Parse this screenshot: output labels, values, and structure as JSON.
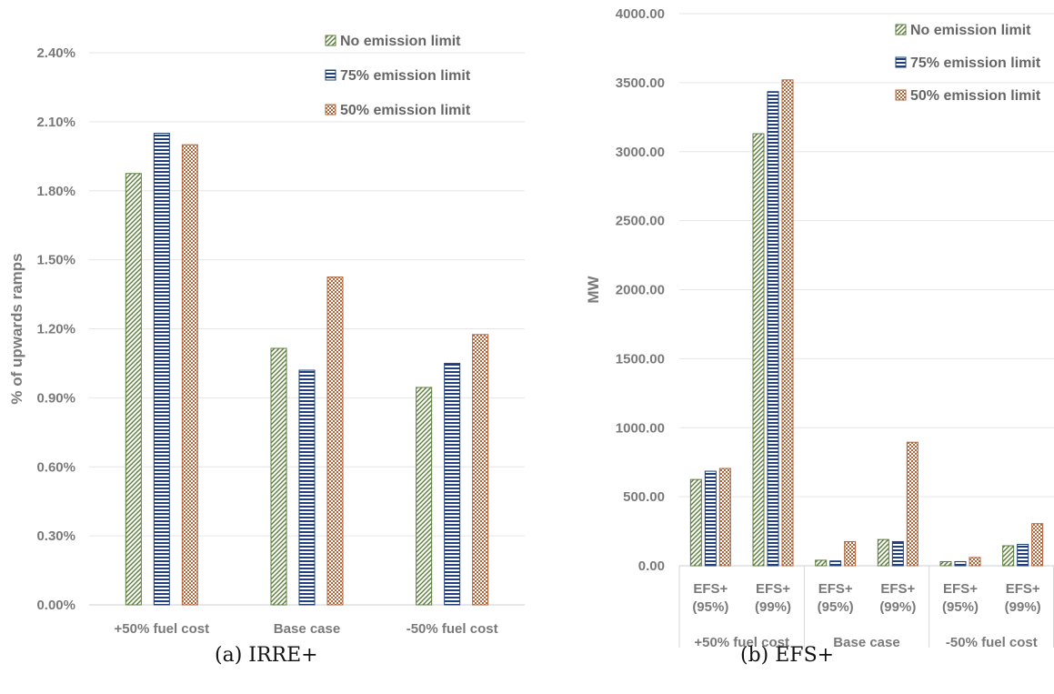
{
  "colors": {
    "no_limit": "#5a7d3a",
    "limit_75": "#203f7a",
    "limit_50": "#b0643a",
    "axis_text": "#7a7a7a",
    "grid": "#e6e6e6"
  },
  "captions": {
    "a": "(a) IRRE+",
    "b": "(b) EFS+"
  },
  "chart_data": [
    {
      "type": "bar",
      "ylabel": "% of upwards ramps",
      "ylim": [
        0,
        2.4
      ],
      "yticks": [
        "0.00%",
        "0.30%",
        "0.60%",
        "0.90%",
        "1.20%",
        "1.50%",
        "1.80%",
        "2.10%",
        "2.40%"
      ],
      "categories": [
        "+50% fuel cost",
        "Base case",
        "-50% fuel cost"
      ],
      "series": [
        {
          "name": "No emission limit",
          "color": "#5a7d3a",
          "pattern": "diag",
          "values": [
            1.875,
            1.115,
            0.945
          ]
        },
        {
          "name": "75% emission limit",
          "color": "#203f7a",
          "pattern": "horiz",
          "values": [
            2.05,
            1.02,
            1.05
          ]
        },
        {
          "name": "50% emission limit",
          "color": "#b0643a",
          "pattern": "check",
          "values": [
            2.0,
            1.425,
            1.175
          ]
        }
      ],
      "legend": "top-right",
      "grid": true
    },
    {
      "type": "bar",
      "ylabel": "MW",
      "ylim": [
        0,
        4000
      ],
      "yticks": [
        "0.00",
        "500.00",
        "1000.00",
        "1500.00",
        "2000.00",
        "2500.00",
        "3000.00",
        "3500.00",
        "4000.00"
      ],
      "groups": [
        "+50% fuel cost",
        "Base case",
        "-50% fuel cost"
      ],
      "subcategories": [
        [
          "EFS+",
          "(95%)"
        ],
        [
          "EFS+",
          "(99%)"
        ],
        [
          "EFS+",
          "(95%)"
        ],
        [
          "EFS+",
          "(99%)"
        ],
        [
          "EFS+",
          "(95%)"
        ],
        [
          "EFS+",
          "(99%)"
        ]
      ],
      "series": [
        {
          "name": "No emission limit",
          "color": "#5a7d3a",
          "pattern": "diag",
          "values": [
            625,
            3130,
            40,
            190,
            30,
            145
          ]
        },
        {
          "name": "75% emission limit",
          "color": "#203f7a",
          "pattern": "horiz",
          "values": [
            685,
            3435,
            35,
            175,
            30,
            155
          ]
        },
        {
          "name": "50% emission limit",
          "color": "#b0643a",
          "pattern": "check",
          "values": [
            705,
            3520,
            175,
            895,
            60,
            305
          ]
        }
      ],
      "legend": "top-right",
      "grid": true
    }
  ]
}
